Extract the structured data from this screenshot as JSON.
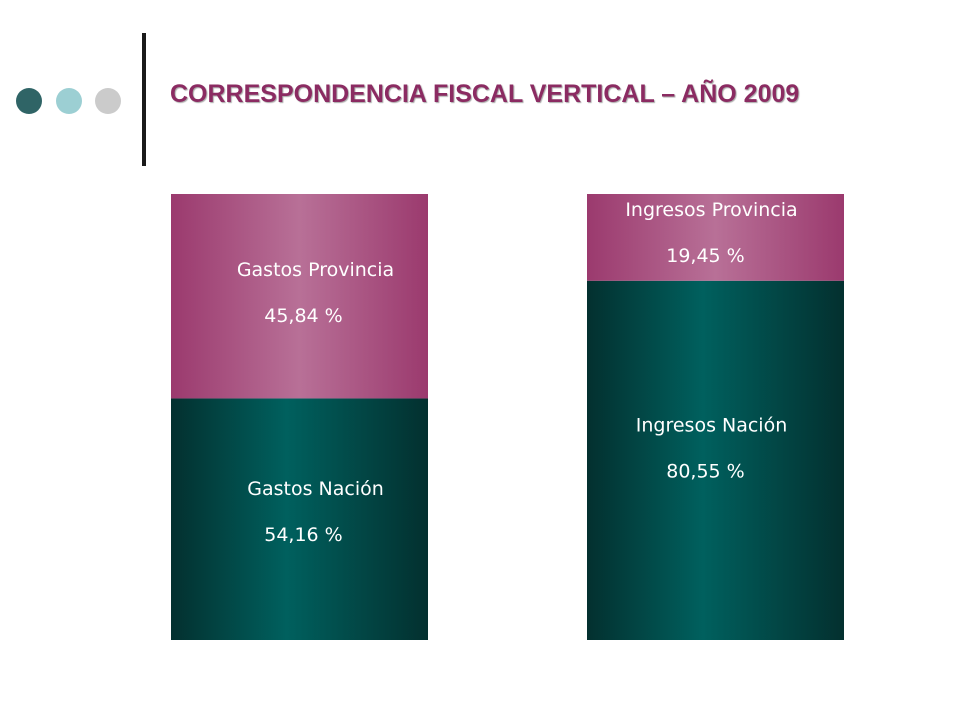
{
  "header": {
    "title": "CORRESPONDENCIA FISCAL VERTICAL – AÑO 2009",
    "title_color": "#8b2b62",
    "dots": [
      {
        "name": "dark-teal-dot",
        "color": "#2f6466"
      },
      {
        "name": "light-teal-dot",
        "color": "#9ccfd3"
      },
      {
        "name": "gray-dot",
        "color": "#cbcbcb"
      }
    ]
  },
  "chart_data": {
    "type": "bar",
    "stacked": true,
    "normalized": true,
    "ylim": [
      0,
      100
    ],
    "colors": {
      "provincia": "#9b3a6e",
      "provincia_light": "#b87097",
      "nacion": "#00605e",
      "nacion_dark": "#03302f"
    },
    "bars": [
      {
        "id": "gastos",
        "segments": [
          {
            "label": "Gastos Nación",
            "value": 54.16,
            "value_text": "54,16 %",
            "part": "nacion"
          },
          {
            "label": "Gastos Provincia",
            "value": 45.84,
            "value_text": "45,84 %",
            "part": "provincia"
          }
        ]
      },
      {
        "id": "ingresos",
        "segments": [
          {
            "label": "Ingresos Nación",
            "value": 80.55,
            "value_text": "80,55 %",
            "part": "nacion"
          },
          {
            "label": "Ingresos Provincia",
            "value": 19.45,
            "value_text": "19,45 %",
            "part": "provincia"
          }
        ]
      }
    ]
  }
}
